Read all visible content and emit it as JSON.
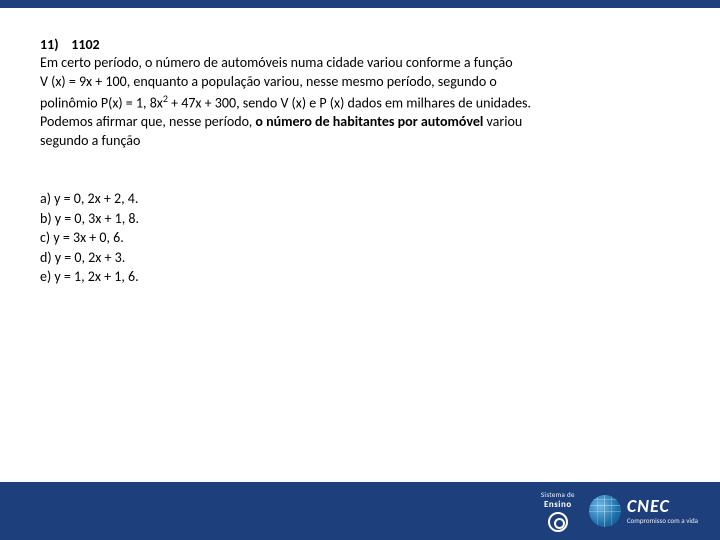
{
  "question": {
    "number": "11)",
    "code": "1102",
    "body_lines": [
      "Em certo período,  o número de automóveis numa cidade variou conforme a função",
      "V (x) = 9x + 100, enquanto a  população variou, nesse mesmo período, segundo o"
    ],
    "poly_prefix": "polinômio P(x) = 1, 8x",
    "poly_exp": "2",
    "poly_suffix": " + 47x + 300, sendo V (x) e P (x) dados em  milhares de unidades.",
    "line4_pre": "Podemos afirmar que, nesse período, ",
    "line4_bold": "o número de habitantes por automóvel",
    "line4_post": " variou",
    "line5": "segundo a função"
  },
  "options": [
    "a) y = 0, 2x + 2, 4.",
    "b) y = 0, 3x + 1, 8.",
    "c) y = 3x + 0, 6.",
    "d) y = 0, 2x + 3.",
    "e) y = 1, 2x + 1, 6."
  ],
  "footer": {
    "sistema_t1": "Sistema de",
    "sistema_t2": "Ensino",
    "cnec_name": "CNEC",
    "cnec_tag": "Compromisso com a vida"
  },
  "colors": {
    "bar": "#1d3f7c",
    "bg": "#ffffff",
    "text": "#000000"
  }
}
